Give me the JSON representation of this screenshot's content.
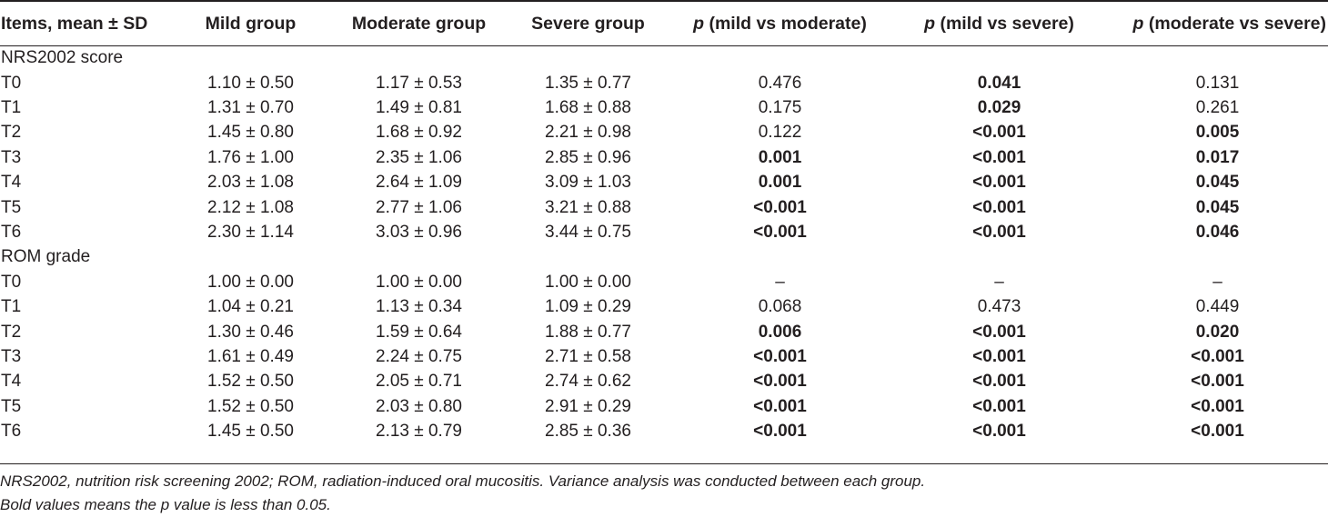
{
  "header": {
    "col0": "Items, mean ± SD",
    "col1": "Mild group",
    "col2": "Moderate group",
    "col3": "Severe group",
    "p_label": "p",
    "col4": "(mild vs moderate)",
    "col5": "(mild vs severe)",
    "col6": "(moderate vs severe)"
  },
  "sections": [
    {
      "title": "NRS2002 score",
      "rows": [
        {
          "item": "T0",
          "mild": "1.10 ± 0.50",
          "moderate": "1.17 ± 0.53",
          "severe": "1.35 ± 0.77",
          "p_mm": "0.476",
          "p_ms": "0.041",
          "p_mods": "0.131"
        },
        {
          "item": "T1",
          "mild": "1.31 ± 0.70",
          "moderate": "1.49 ± 0.81",
          "severe": "1.68 ± 0.88",
          "p_mm": "0.175",
          "p_ms": "0.029",
          "p_mods": "0.261"
        },
        {
          "item": "T2",
          "mild": "1.45 ± 0.80",
          "moderate": "1.68 ± 0.92",
          "severe": "2.21 ± 0.98",
          "p_mm": "0.122",
          "p_ms": "<0.001",
          "p_mods": "0.005"
        },
        {
          "item": "T3",
          "mild": "1.76 ± 1.00",
          "moderate": "2.35 ± 1.06",
          "severe": "2.85 ± 0.96",
          "p_mm": "0.001",
          "p_ms": "<0.001",
          "p_mods": "0.017"
        },
        {
          "item": "T4",
          "mild": "2.03 ± 1.08",
          "moderate": "2.64 ± 1.09",
          "severe": "3.09 ± 1.03",
          "p_mm": "0.001",
          "p_ms": "<0.001",
          "p_mods": "0.045"
        },
        {
          "item": "T5",
          "mild": "2.12 ± 1.08",
          "moderate": "2.77 ± 1.06",
          "severe": "3.21 ± 0.88",
          "p_mm": "<0.001",
          "p_ms": "<0.001",
          "p_mods": "0.045"
        },
        {
          "item": "T6",
          "mild": "2.30 ± 1.14",
          "moderate": "3.03 ± 0.96",
          "severe": "3.44 ± 0.75",
          "p_mm": "<0.001",
          "p_ms": "<0.001",
          "p_mods": "0.046"
        }
      ]
    },
    {
      "title": "ROM grade",
      "rows": [
        {
          "item": "T0",
          "mild": "1.00 ± 0.00",
          "moderate": "1.00 ± 0.00",
          "severe": "1.00 ± 0.00",
          "p_mm": "–",
          "p_ms": "–",
          "p_mods": "–"
        },
        {
          "item": "T1",
          "mild": "1.04 ± 0.21",
          "moderate": "1.13 ± 0.34",
          "severe": "1.09 ± 0.29",
          "p_mm": "0.068",
          "p_ms": "0.473",
          "p_mods": "0.449"
        },
        {
          "item": "T2",
          "mild": "1.30 ± 0.46",
          "moderate": "1.59 ± 0.64",
          "severe": "1.88 ± 0.77",
          "p_mm": "0.006",
          "p_ms": "<0.001",
          "p_mods": "0.020"
        },
        {
          "item": "T3",
          "mild": "1.61 ± 0.49",
          "moderate": "2.24 ± 0.75",
          "severe": "2.71 ± 0.58",
          "p_mm": "<0.001",
          "p_ms": "<0.001",
          "p_mods": "<0.001"
        },
        {
          "item": "T4",
          "mild": "1.52 ± 0.50",
          "moderate": "2.05 ± 0.71",
          "severe": "2.74 ± 0.62",
          "p_mm": "<0.001",
          "p_ms": "<0.001",
          "p_mods": "<0.001"
        },
        {
          "item": "T5",
          "mild": "1.52 ± 0.50",
          "moderate": "2.03 ± 0.80",
          "severe": "2.91 ± 0.29",
          "p_mm": "<0.001",
          "p_ms": "<0.001",
          "p_mods": "<0.001"
        },
        {
          "item": "T6",
          "mild": "1.45 ± 0.50",
          "moderate": "2.13 ± 0.79",
          "severe": "2.85 ± 0.36",
          "p_mm": "<0.001",
          "p_ms": "<0.001",
          "p_mods": "<0.001"
        }
      ]
    }
  ],
  "footnotes": [
    "NRS2002, nutrition risk screening 2002; ROM, radiation-induced oral mucositis. Variance analysis was conducted between each group.",
    "Bold values means the p value is less than 0.05."
  ]
}
